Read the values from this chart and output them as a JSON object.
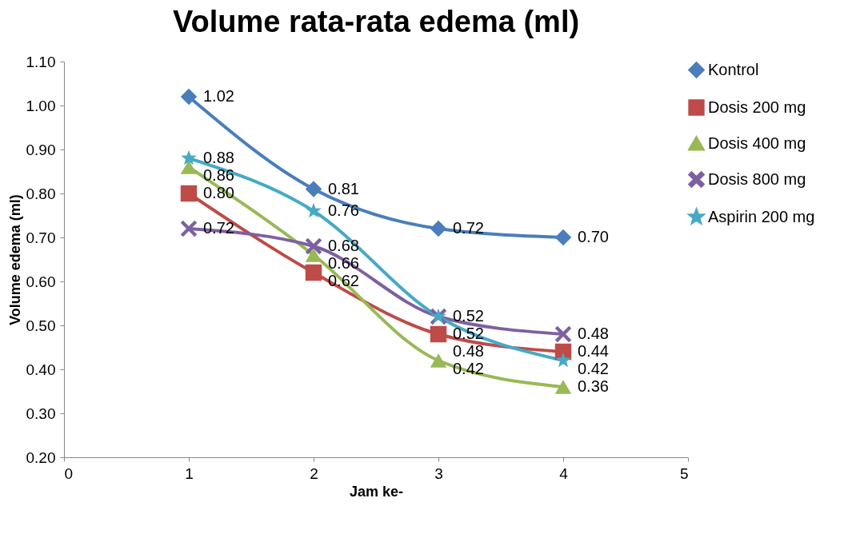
{
  "chart_data": {
    "type": "line",
    "title": "Volume rata-rata edema  (ml)",
    "xlabel": "Jam ke-",
    "ylabel": "Volume edema (ml)",
    "x": [
      1,
      2,
      3,
      4
    ],
    "xlim": [
      0,
      5
    ],
    "xticks": [
      0,
      1,
      2,
      3,
      4,
      5
    ],
    "ylim": [
      0.2,
      1.1
    ],
    "yticks": [
      {
        "value": 0.2,
        "label": "0.20"
      },
      {
        "value": 0.3,
        "label": "0.30"
      },
      {
        "value": 0.4,
        "label": "0.40"
      },
      {
        "value": 0.5,
        "label": "0.50"
      },
      {
        "value": 0.6,
        "label": "0.60"
      },
      {
        "value": 0.7,
        "label": "0.70"
      },
      {
        "value": 0.8,
        "label": "0.80"
      },
      {
        "value": 0.9,
        "label": "0.90"
      },
      {
        "value": 1.0,
        "label": "1.00"
      },
      {
        "value": 1.1,
        "label": "1.10"
      }
    ],
    "legend": "right",
    "line_style": "solid",
    "series": [
      {
        "name": "Kontrol",
        "color": "#4a7ebb",
        "marker": "diamond",
        "values": [
          1.02,
          0.81,
          0.72,
          0.7
        ],
        "value_labels": [
          "1.02",
          "0.81",
          "0.72",
          "0.70"
        ]
      },
      {
        "name": "Dosis 200 mg",
        "color": "#be4b48",
        "marker": "square",
        "values": [
          0.8,
          0.62,
          0.48,
          0.44
        ],
        "value_labels": [
          "0.80",
          "0.62",
          "0.48",
          "0.44"
        ]
      },
      {
        "name": "Dosis 400 mg",
        "color": "#98b954",
        "marker": "triangle",
        "values": [
          0.86,
          0.66,
          0.42,
          0.36
        ],
        "value_labels": [
          "0.86",
          "0.66",
          "0.42",
          "0.36"
        ]
      },
      {
        "name": "Dosis 800 mg",
        "color": "#7d60a0",
        "marker": "cross",
        "values": [
          0.72,
          0.68,
          0.52,
          0.48
        ],
        "value_labels": [
          "0.72",
          "0.68",
          "0.52",
          "0.48"
        ]
      },
      {
        "name": "Aspirin 200 mg",
        "color": "#46aac5",
        "marker": "star",
        "values": [
          0.88,
          0.76,
          0.52,
          0.42
        ],
        "value_labels": [
          "0.88",
          "0.76",
          "0.52",
          "0.42"
        ]
      }
    ]
  }
}
